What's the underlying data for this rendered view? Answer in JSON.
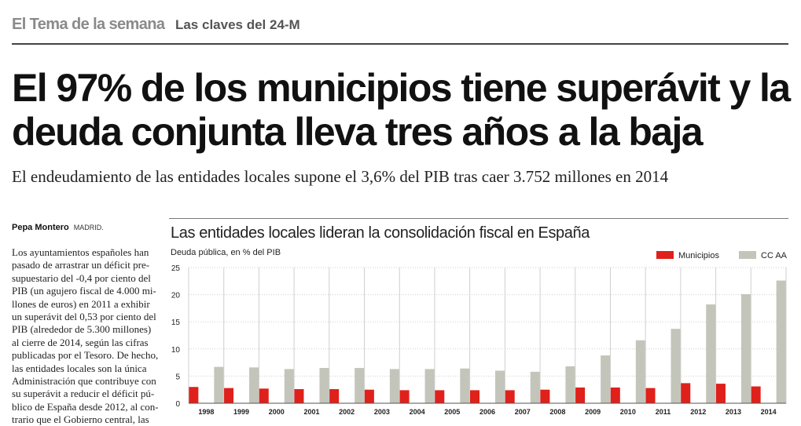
{
  "section": {
    "name": "El Tema de la semana",
    "sub": "Las claves del 24-M"
  },
  "headline": "El 97% de los municipios tiene superávit y la deuda conjunta lleva tres años a la baja",
  "standfirst": "El endeudamiento de las entidades locales supone el 3,6% del PIB tras caer 3.752 millones en 2014",
  "byline": {
    "author": "Pepa Montero",
    "place": "MADRID."
  },
  "body_lines": [
    "Los ayuntamientos españoles han",
    "pasado de arrastrar un déficit pre-",
    "supuestario del -0,4 por ciento del",
    "PIB (un agujero fiscal de 4.000 mi-",
    "llones de euros) en 2011 a exhibir",
    "un superávit del 0,53 por ciento del",
    "PIB (alrededor de 5.300 millones)",
    "al cierre de 2014, según las cifras",
    "publicadas por el Tesoro. De hecho,",
    "las entidades locales son la única",
    "Administración que contribuye con",
    "su superávit a reducir el déficit pú-",
    "blico de España desde 2012, al con-",
    "trario que el Gobierno central, las"
  ],
  "colors": {
    "municipios": "#e0201b",
    "ccaa": "#c3c5bb",
    "grid": "#cfcfcf"
  },
  "chart_data": {
    "type": "bar",
    "title": "Las entidades locales lideran la consolidación fiscal en España",
    "ylabel": "Deuda pública, en % del PIB",
    "xlabel": "",
    "ylim": [
      0,
      25
    ],
    "yticks": [
      "0",
      "5",
      "10",
      "15",
      "20",
      "25"
    ],
    "grid": true,
    "legend_position": "top-right",
    "categories": [
      "1998",
      "1999",
      "2000",
      "2001",
      "2002",
      "2003",
      "2004",
      "2005",
      "2006",
      "2007",
      "2008",
      "2009",
      "2010",
      "2011",
      "2012",
      "2013",
      "2014"
    ],
    "series": [
      {
        "name": "Municipios",
        "values": [
          3.0,
          2.8,
          2.7,
          2.6,
          2.6,
          2.5,
          2.4,
          2.4,
          2.4,
          2.4,
          2.5,
          2.9,
          2.9,
          2.8,
          3.7,
          3.6,
          3.1
        ]
      },
      {
        "name": "CC AA",
        "values": [
          6.7,
          6.6,
          6.3,
          6.5,
          6.5,
          6.3,
          6.3,
          6.4,
          6.0,
          5.8,
          6.8,
          8.8,
          11.6,
          13.7,
          18.2,
          20.1,
          22.6
        ]
      }
    ]
  }
}
